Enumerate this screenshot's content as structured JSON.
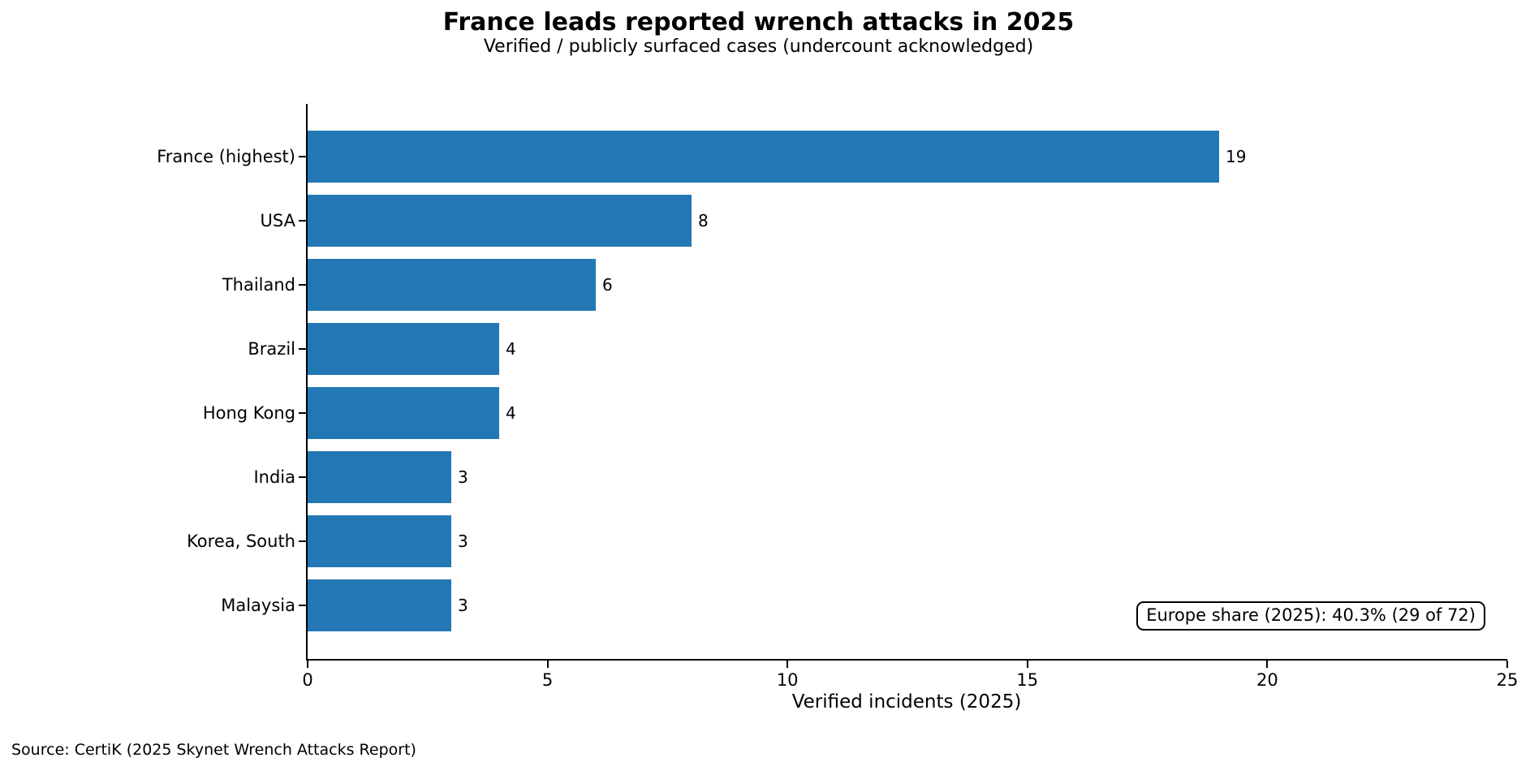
{
  "chart_data": {
    "type": "bar",
    "orientation": "horizontal",
    "title": "France leads reported wrench attacks in 2025",
    "subtitle": "Verified / publicly surfaced cases (undercount acknowledged)",
    "categories": [
      "France (highest)",
      "USA",
      "Thailand",
      "Brazil",
      "Hong Kong",
      "India",
      "Korea, South",
      "Malaysia"
    ],
    "values": [
      19,
      8,
      6,
      4,
      4,
      3,
      3,
      3
    ],
    "xlabel": "Verified incidents (2025)",
    "ylabel": "",
    "xlim": [
      0,
      25
    ],
    "xticks": [
      0,
      5,
      10,
      15,
      20,
      25
    ],
    "bar_color": "#2277b4",
    "grid": false,
    "legend_position": "none",
    "annotation": "Europe share (2025): 40.3% (29 of 72)",
    "source": "Source: CertiK (2025 Skynet Wrench Attacks Report)"
  }
}
